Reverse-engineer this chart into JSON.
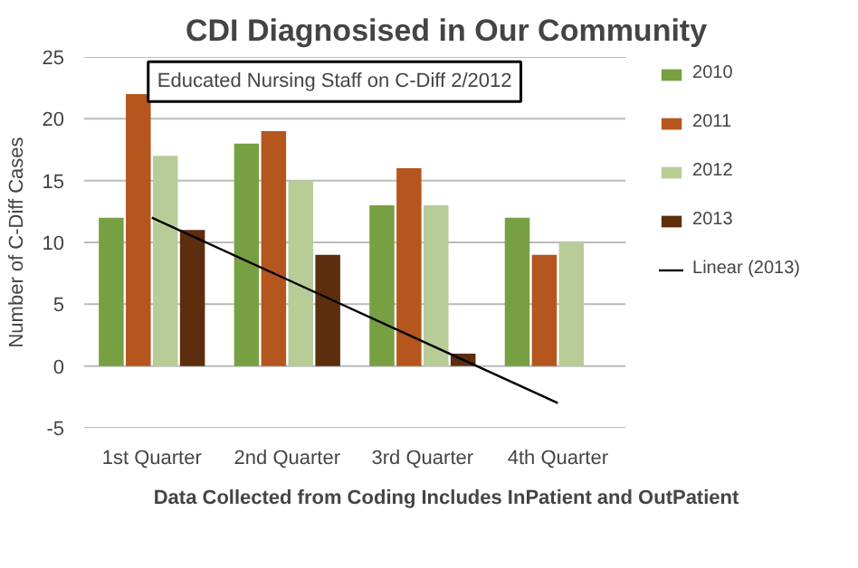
{
  "chart_data": {
    "type": "bar",
    "title": "CDI Diagnosised in Our Community",
    "ylabel": "Number of C-Diff Cases",
    "categories": [
      "1st Quarter",
      "2nd Quarter",
      "3rd Quarter",
      "4th Quarter"
    ],
    "series": [
      {
        "name": "2010",
        "color": "#77a043",
        "values": [
          12,
          18,
          13,
          12
        ]
      },
      {
        "name": "2011",
        "color": "#b5561e",
        "values": [
          22,
          19,
          16,
          9
        ]
      },
      {
        "name": "2012",
        "color": "#b8cc98",
        "values": [
          17,
          15,
          13,
          10
        ]
      },
      {
        "name": "2013",
        "color": "#5c2e0e",
        "values": [
          11,
          9,
          1,
          null
        ]
      },
      {
        "name": "Linear (2013)",
        "type": "line",
        "color": "#000000",
        "values": [
          12,
          7,
          2,
          -3
        ]
      }
    ],
    "annotations": [
      "Educated Nursing Staff on C-Diff 2/2012",
      "Data Collected from Coding Includes InPatient and OutPatient"
    ],
    "ylim": [
      -5,
      25
    ],
    "yticks": [
      -5,
      0,
      5,
      10,
      15,
      20,
      25
    ],
    "grid": "y",
    "legend": "right",
    "line_style": "solid"
  }
}
